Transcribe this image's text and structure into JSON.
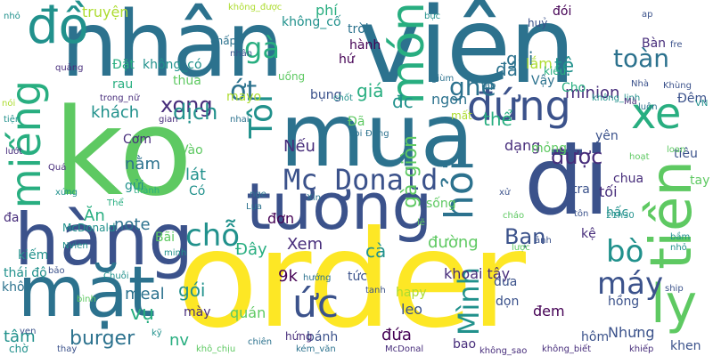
{
  "palette": {
    "dark_purple": "#440154",
    "indigo": "#472d7b",
    "blue": "#3b528b",
    "slate_blue": "#2c728e",
    "teal": "#21918c",
    "green_teal": "#28ae80",
    "green": "#5ec962",
    "lime": "#addc30",
    "yellow": "#fde725"
  },
  "words": [
    {
      "text": "nhân",
      "color": "#2c728e"
    },
    {
      "text": "viên",
      "color": "#2c728e"
    },
    {
      "text": "ko",
      "color": "#5ec962"
    },
    {
      "text": "order",
      "color": "#fde725"
    },
    {
      "text": "mua",
      "color": "#2c728e"
    },
    {
      "text": "đi",
      "color": "#3b528b"
    },
    {
      "text": "hàng",
      "color": "#3b528b"
    },
    {
      "text": "mặt",
      "color": "#2c728e"
    },
    {
      "text": "tương",
      "color": "#3b528b"
    },
    {
      "text": "đồ",
      "color": "#21918c"
    },
    {
      "text": "miếng",
      "color": "#28ae80"
    },
    {
      "text": "món",
      "color": "#28ae80"
    },
    {
      "text": "đứng",
      "color": "#3b528b"
    },
    {
      "text": "xe",
      "color": "#28ae80"
    },
    {
      "text": "tiền",
      "color": "#5ec962"
    },
    {
      "text": "ly",
      "color": "#5ec962"
    },
    {
      "text": "hỏi",
      "color": "#2c728e"
    },
    {
      "text": "Tôi",
      "color": "#21918c"
    },
    {
      "text": "Mc Donald",
      "color": "#3b528b"
    },
    {
      "text": "ức",
      "color": "#3b528b"
    },
    {
      "text": "gà giòn",
      "color": "#5ec962"
    },
    {
      "text": "Mình",
      "color": "#21918c"
    },
    {
      "text": "máy",
      "color": "#3b528b"
    },
    {
      "text": "được",
      "color": "#472d7b"
    },
    {
      "text": "bò",
      "color": "#21918c"
    },
    {
      "text": "Bạn",
      "color": "#3b528b"
    },
    {
      "text": "chỗ",
      "color": "#21918c"
    },
    {
      "text": "gà",
      "color": "#28ae80"
    },
    {
      "text": "ớt",
      "color": "#2c728e"
    },
    {
      "text": "xong",
      "color": "#472d7b"
    },
    {
      "text": "dịch",
      "color": "#21918c"
    },
    {
      "text": "ghé",
      "color": "#2c728e"
    },
    {
      "text": "toàn",
      "color": "#2c728e"
    },
    {
      "text": "truyện",
      "color": "#addc30"
    },
    {
      "text": "khách",
      "color": "#21918c"
    },
    {
      "text": "burger",
      "color": "#2c728e"
    },
    {
      "text": "vụ",
      "color": "#28ae80"
    },
    {
      "text": "meal",
      "color": "#2c728e"
    },
    {
      "text": "gói",
      "color": "#21918c"
    },
    {
      "text": "9k",
      "color": "#440154"
    },
    {
      "text": "Đây",
      "color": "#28ae80"
    },
    {
      "text": "Xem",
      "color": "#472d7b"
    },
    {
      "text": "note",
      "color": "#2c728e"
    },
    {
      "text": "Ăn",
      "color": "#28ae80"
    },
    {
      "text": "nằm",
      "color": "#2c728e"
    },
    {
      "text": "lát",
      "color": "#21918c"
    },
    {
      "text": "đơn",
      "color": "#440154"
    },
    {
      "text": "đường",
      "color": "#5ec962"
    },
    {
      "text": "cà",
      "color": "#21918c"
    },
    {
      "text": "tối",
      "color": "#472d7b"
    },
    {
      "text": "gọi",
      "color": "#2c728e"
    },
    {
      "text": "đá",
      "color": "#2c728e"
    },
    {
      "text": "thể",
      "color": "#28ae80"
    },
    {
      "text": "đc",
      "color": "#21918c"
    },
    {
      "text": "giá",
      "color": "#28ae80"
    },
    {
      "text": "ngon",
      "color": "#2c728e"
    },
    {
      "text": "dạng",
      "color": "#472d7b"
    },
    {
      "text": "Nếu",
      "color": "#472d7b"
    },
    {
      "text": "phí",
      "color": "#28ae80"
    },
    {
      "text": "tệ",
      "color": "#21918c"
    },
    {
      "text": "minion",
      "color": "#472d7b"
    },
    {
      "text": "lắm",
      "color": "#addc30"
    },
    {
      "text": "Vậy",
      "color": "#2c728e"
    },
    {
      "text": "Bàn",
      "color": "#472d7b"
    },
    {
      "text": "đói",
      "color": "#440154"
    },
    {
      "text": "tâm",
      "color": "#21918c"
    },
    {
      "text": "nv",
      "color": "#28ae80"
    },
    {
      "text": "quán",
      "color": "#5ec962"
    },
    {
      "text": "mày",
      "color": "#472d7b"
    },
    {
      "text": "khoai tây",
      "color": "#472d7b"
    },
    {
      "text": "bánh",
      "color": "#3b528b"
    },
    {
      "text": "đứa",
      "color": "#440154"
    },
    {
      "text": "hôm",
      "color": "#3b528b"
    },
    {
      "text": "Nhưng",
      "color": "#3b528b"
    },
    {
      "text": "đem",
      "color": "#440154"
    },
    {
      "text": "bao",
      "color": "#472d7b"
    },
    {
      "text": "khen",
      "color": "#3b528b"
    },
    {
      "text": "hồng",
      "color": "#3b528b"
    },
    {
      "text": "dưa",
      "color": "#3b528b"
    },
    {
      "text": "leo",
      "color": "#3b528b"
    },
    {
      "text": "hapy",
      "color": "#addc30"
    },
    {
      "text": "tức",
      "color": "#3b528b"
    },
    {
      "text": "dọn",
      "color": "#3b528b"
    },
    {
      "text": "sống",
      "color": "#5ec962"
    },
    {
      "text": "kệ",
      "color": "#472d7b"
    },
    {
      "text": "hấc",
      "color": "#21918c"
    },
    {
      "text": "tay chiên",
      "color": "#5ec962"
    },
    {
      "text": "chua",
      "color": "#472d7b"
    },
    {
      "text": "tra",
      "color": "#3b528b"
    },
    {
      "text": "mỏng",
      "color": "#5ec962"
    },
    {
      "text": "yên",
      "color": "#3b528b"
    },
    {
      "text": "tiêu",
      "color": "#3b528b"
    },
    {
      "text": "Đêm",
      "color": "#3b528b"
    },
    {
      "text": "hứng",
      "color": "#472d7b"
    },
    {
      "text": "thái độ",
      "color": "#21918c"
    },
    {
      "text": "kiếm",
      "color": "#21918c"
    },
    {
      "text": "khô",
      "color": "#2c728e"
    },
    {
      "text": "đa",
      "color": "#472d7b"
    },
    {
      "text": "McDonald",
      "color": "#21918c"
    },
    {
      "text": "Bãi",
      "color": "#5ec962"
    },
    {
      "text": "Cơm",
      "color": "#472d7b"
    },
    {
      "text": "Vào",
      "color": "#5ec962"
    },
    {
      "text": "Có",
      "color": "#21918c"
    },
    {
      "text": "gửi",
      "color": "#21918c"
    },
    {
      "text": "không_có",
      "color": "#21918c"
    },
    {
      "text": "rau",
      "color": "#28ae80"
    },
    {
      "text": "Đặt",
      "color": "#28ae80"
    },
    {
      "text": "thua",
      "color": "#5ec962"
    },
    {
      "text": "chấp",
      "color": "#2c728e"
    },
    {
      "text": "mayo",
      "color": "#addc30"
    },
    {
      "text": "uống",
      "color": "#5ec962"
    },
    {
      "text": "bụng",
      "color": "#3b528b"
    },
    {
      "text": "trời",
      "color": "#2c728e"
    },
    {
      "text": "hành",
      "color": "#440154"
    },
    {
      "text": "hứ",
      "color": "#440154"
    },
    {
      "text": "Đã",
      "color": "#5ec962"
    },
    {
      "text": "mất",
      "color": "#addc30"
    },
    {
      "text": "không_cố",
      "color": "#21918c"
    },
    {
      "text": "bực",
      "color": "#21918c"
    },
    {
      "text": "huỷ",
      "color": "#3b528b"
    },
    {
      "text": "Cho",
      "color": "#28ae80"
    },
    {
      "text": "kiểu",
      "color": "#28ae80"
    },
    {
      "text": "ap",
      "color": "#3b528b"
    },
    {
      "text": "fre",
      "color": "#3b528b"
    },
    {
      "text": "khiếp",
      "color": "#472d7b"
    },
    {
      "text": "chờ",
      "color": "#21918c"
    },
    {
      "text": "ven",
      "color": "#3b528b"
    },
    {
      "text": "kỹ",
      "color": "#21918c"
    },
    {
      "text": "thay",
      "color": "#3b528b"
    },
    {
      "text": "Chuỗi",
      "color": "#21918c"
    },
    {
      "text": "kém_văn",
      "color": "#2c728e"
    },
    {
      "text": "chiên",
      "color": "#2c728e"
    },
    {
      "text": "không_sao",
      "color": "#472d7b"
    },
    {
      "text": "không_biết",
      "color": "#472d7b"
    },
    {
      "text": "ship",
      "color": "#3b528b"
    },
    {
      "text": "21h30",
      "color": "#21918c"
    },
    {
      "text": "Khùng",
      "color": "#3b528b"
    },
    {
      "text": "luôn",
      "color": "#2c728e"
    },
    {
      "text": "không_linh",
      "color": "#21918c"
    },
    {
      "text": "VN",
      "color": "#21918c"
    },
    {
      "text": "Mà",
      "color": "#472d7b"
    },
    {
      "text": "gian",
      "color": "#472d7b"
    },
    {
      "text": "nhỏ",
      "color": "#21918c"
    },
    {
      "text": "quảng",
      "color": "#472d7b"
    },
    {
      "text": "trong_nữ",
      "color": "#472d7b"
    },
    {
      "text": "tiện",
      "color": "#21918c"
    },
    {
      "text": "nói",
      "color": "#addc30"
    },
    {
      "text": "lướt",
      "color": "#472d7b"
    },
    {
      "text": "Quá",
      "color": "#472d7b"
    },
    {
      "text": "xứng",
      "color": "#21918c"
    },
    {
      "text": "Thể",
      "color": "#28ae80"
    },
    {
      "text": "thành",
      "color": "#28ae80"
    },
    {
      "text": "bảo",
      "color": "#3b528b"
    },
    {
      "text": "Nvien",
      "color": "#21918c"
    },
    {
      "text": "tanh",
      "color": "#3b528b"
    },
    {
      "text": "nhai",
      "color": "#2c728e"
    },
    {
      "text": "Đang",
      "color": "#2c728e"
    },
    {
      "text": "coi",
      "color": "#2c728e"
    },
    {
      "text": "nhân",
      "color": "#3b528b"
    },
    {
      "text": "không_được",
      "color": "#addc30"
    },
    {
      "text": "Nhà",
      "color": "#3b528b"
    },
    {
      "text": "tôn",
      "color": "#3b528b"
    },
    {
      "text": "ảnh",
      "color": "#3b528b"
    },
    {
      "text": "lược",
      "color": "#5ec962"
    },
    {
      "text": "cháo",
      "color": "#5ec962"
    },
    {
      "text": "loan",
      "color": "#5ec962"
    },
    {
      "text": "hoạt",
      "color": "#5ec962"
    },
    {
      "text": "bầm",
      "color": "#21918c"
    },
    {
      "text": "nhỏ",
      "color": "#21918c"
    },
    {
      "text": "khô_chịu",
      "color": "#5ec962"
    },
    {
      "text": "McDonal",
      "color": "#472d7b"
    },
    {
      "text": "chốt",
      "color": "#21918c"
    },
    {
      "text": "lẽ",
      "color": "#5ec962"
    },
    {
      "text": "minh",
      "color": "#21918c"
    },
    {
      "text": "bình",
      "color": "#5ec962"
    },
    {
      "text": "giùm",
      "color": "#2c728e"
    },
    {
      "text": "tập",
      "color": "#2c728e"
    },
    {
      "text": "Xin",
      "color": "#2c728e"
    },
    {
      "text": "Lựa",
      "color": "#2c728e"
    },
    {
      "text": "hướng",
      "color": "#2c728e"
    },
    {
      "text": "nge",
      "color": "#2c728e"
    },
    {
      "text": "xử",
      "color": "#3b528b"
    }
  ]
}
